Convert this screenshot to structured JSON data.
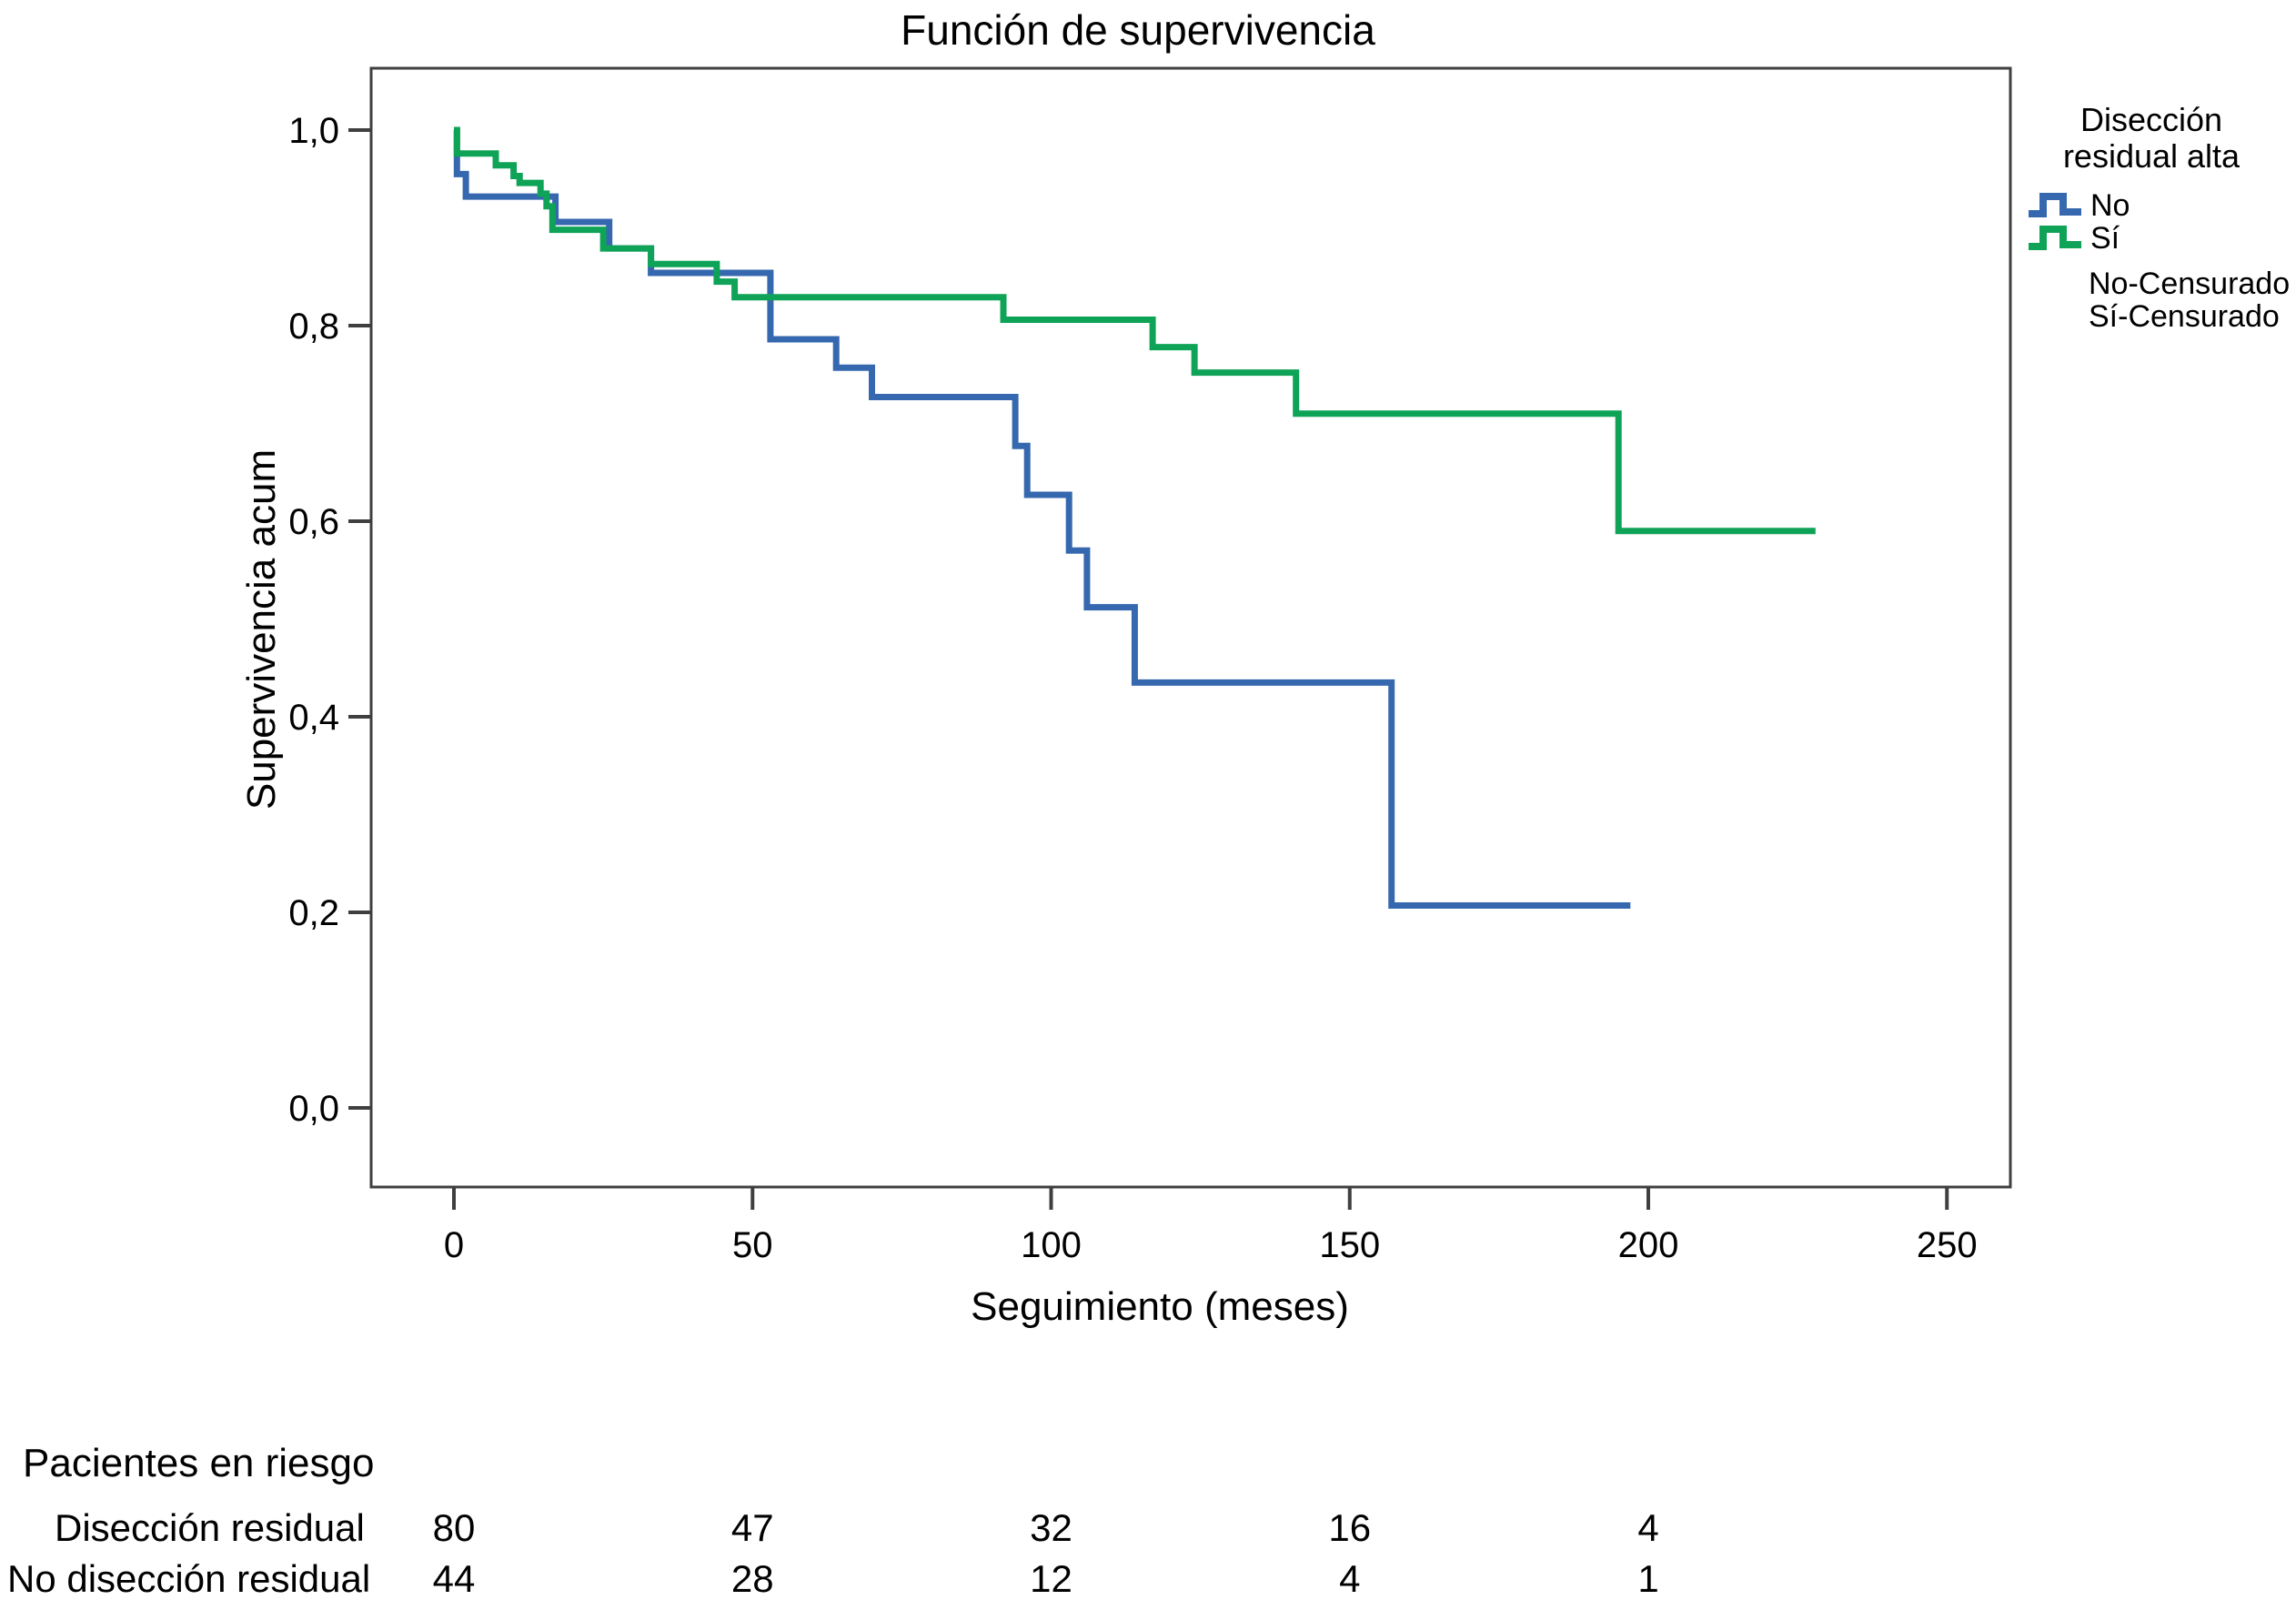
{
  "title": "Función de supervivencia",
  "x_axis": {
    "title": "Seguimiento (meses)",
    "ticks": [
      {
        "value": 0,
        "label": "0"
      },
      {
        "value": 50,
        "label": "50"
      },
      {
        "value": 100,
        "label": "100"
      },
      {
        "value": 150,
        "label": "150"
      },
      {
        "value": 200,
        "label": "200"
      },
      {
        "value": 250,
        "label": "250"
      }
    ]
  },
  "y_axis": {
    "title": "Supervivencia acum",
    "ticks": [
      {
        "value": 1.0,
        "label": "1,0"
      },
      {
        "value": 0.8,
        "label": "0,8"
      },
      {
        "value": 0.6,
        "label": "0,6"
      },
      {
        "value": 0.4,
        "label": "0,4"
      },
      {
        "value": 0.2,
        "label": "0,2"
      },
      {
        "value": 0.0,
        "label": "0,0"
      }
    ]
  },
  "legend": {
    "title_line1": "Disección",
    "title_line2": "residual alta",
    "items": [
      {
        "label": "No",
        "type": "line",
        "color": "#3568AE"
      },
      {
        "label": "Sí",
        "type": "line",
        "color": "#0FA357"
      },
      {
        "label": "No-Censurado",
        "type": "censored",
        "color": "#3568AE"
      },
      {
        "label": "Sí-Censurado",
        "type": "censored",
        "color": "#0FA357"
      }
    ]
  },
  "chart_data": {
    "type": "line",
    "subtype": "kaplan-meier-step",
    "title": "Función de supervivencia",
    "xlabel": "Seguimiento (meses)",
    "ylabel": "Supervivencia acum",
    "xlim": [
      0,
      250
    ],
    "ylim": [
      0.0,
      1.0
    ],
    "grid": false,
    "legend_position": "right",
    "series": [
      {
        "name": "No",
        "color": "#3568AE",
        "end_time": 197,
        "points": [
          [
            0,
            1.0
          ],
          [
            0.5,
            0.955
          ],
          [
            2,
            0.932
          ],
          [
            17,
            0.906
          ],
          [
            26,
            0.879
          ],
          [
            33,
            0.854
          ],
          [
            53,
            0.786
          ],
          [
            64,
            0.757
          ],
          [
            70,
            0.727
          ],
          [
            94,
            0.677
          ],
          [
            96,
            0.627
          ],
          [
            103,
            0.57
          ],
          [
            106,
            0.512
          ],
          [
            114,
            0.435
          ],
          [
            157,
            0.207
          ]
        ]
      },
      {
        "name": "Sí",
        "color": "#0FA357",
        "end_time": 228,
        "points": [
          [
            0,
            1.0
          ],
          [
            0.5,
            0.976
          ],
          [
            7,
            0.964
          ],
          [
            10,
            0.953
          ],
          [
            11,
            0.946
          ],
          [
            14.5,
            0.935
          ],
          [
            15.5,
            0.922
          ],
          [
            16.5,
            0.898
          ],
          [
            25,
            0.879
          ],
          [
            33,
            0.863
          ],
          [
            44,
            0.845
          ],
          [
            47,
            0.829
          ],
          [
            92,
            0.806
          ],
          [
            117,
            0.778
          ],
          [
            124,
            0.752
          ],
          [
            141,
            0.71
          ],
          [
            195,
            0.59
          ]
        ]
      }
    ]
  },
  "risk_table": {
    "header": "Pacientes en riesgo",
    "time_points": [
      0,
      50,
      100,
      150,
      200
    ],
    "rows": [
      {
        "label": "Disección residual",
        "values": [
          "80",
          "47",
          "32",
          "16",
          "4"
        ]
      },
      {
        "label": "No disección residual",
        "values": [
          "44",
          "28",
          "12",
          "4",
          "1"
        ]
      }
    ]
  },
  "colors": {
    "frame": "#3F3F3F",
    "text": "#000000",
    "series_no": "#3568AE",
    "series_si": "#0FA357",
    "background": "#FFFFFF"
  }
}
